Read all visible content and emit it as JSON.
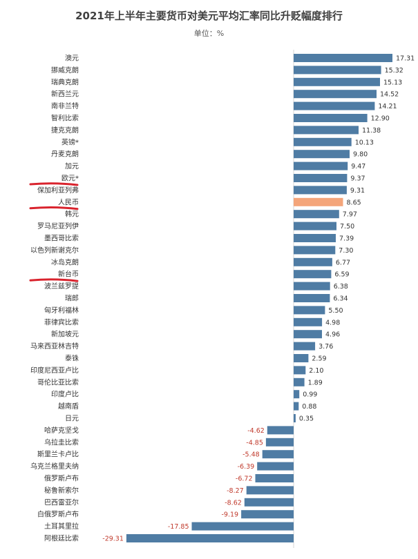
{
  "chart_data": {
    "type": "bar",
    "orientation": "horizontal",
    "title": "2021年上半年主要货币对美元平均汇率同比升贬幅度排行",
    "subtitle": "单位：%",
    "colors": {
      "default": "#4f7ca4",
      "highlight": "#f4a57a",
      "annotation": "#d9232d"
    },
    "highlight_category": "人民币",
    "underlined_categories": [
      "欧元*",
      "人民币",
      "新台币"
    ],
    "categories": [
      "澳元",
      "挪威克朗",
      "瑞典克朗",
      "新西兰元",
      "南非兰特",
      "智利比索",
      "捷克克朗",
      "英镑*",
      "丹麦克朗",
      "加元",
      "欧元*",
      "保加利亚列弗",
      "人民币",
      "韩元",
      "罗马尼亚列伊",
      "墨西哥比索",
      "以色列新谢克尔",
      "冰岛克朗",
      "新台币",
      "波兰兹罗提",
      "瑞郎",
      "匈牙利福林",
      "菲律宾比索",
      "新加坡元",
      "马来西亚林吉特",
      "泰铢",
      "印度尼西亚卢比",
      "哥伦比亚比索",
      "印度卢比",
      "越南盾",
      "日元",
      "哈萨克坚戈",
      "乌拉圭比索",
      "斯里兰卡卢比",
      "乌克兰格里夫纳",
      "俄罗斯卢布",
      "秘鲁新索尔",
      "巴西雷亚尔",
      "白俄罗斯卢布",
      "土耳其里拉",
      "阿根廷比索"
    ],
    "values": [
      17.31,
      15.32,
      15.13,
      14.52,
      14.21,
      12.9,
      11.38,
      10.13,
      9.8,
      9.47,
      9.37,
      9.31,
      8.65,
      7.97,
      7.5,
      7.39,
      7.3,
      6.77,
      6.59,
      6.38,
      6.34,
      5.5,
      4.98,
      4.96,
      3.76,
      2.59,
      2.1,
      1.89,
      0.99,
      0.88,
      0.35,
      -4.62,
      -4.85,
      -5.48,
      -6.39,
      -6.72,
      -8.27,
      -8.62,
      -9.19,
      -17.85,
      -29.31
    ],
    "value_labels": [
      "17.31",
      "15.32",
      "15.13",
      "14.52",
      "14.21",
      "12.90",
      "11.38",
      "10.13",
      "9.80",
      "9.47",
      "9.37",
      "9.31",
      "8.65",
      "7.97",
      "7.50",
      "7.39",
      "7.30",
      "6.77",
      "6.59",
      "6.38",
      "6.34",
      "5.50",
      "4.98",
      "4.96",
      "3.76",
      "2.59",
      "2.10",
      "1.89",
      "0.99",
      "0.88",
      "0.35",
      "-4.62",
      "-4.85",
      "-5.48",
      "-6.39",
      "-6.72",
      "-8.27",
      "-8.62",
      "-9.19",
      "-17.85",
      "-29.31"
    ],
    "xlim": [
      -29.31,
      17.31
    ],
    "grid": false,
    "legend": "none"
  }
}
